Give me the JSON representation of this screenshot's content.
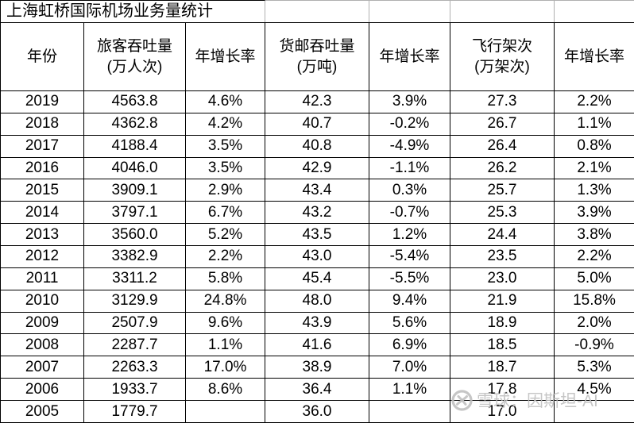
{
  "title": "上海虹桥国际机场业务量统计",
  "watermark": {
    "text": "雪球：因斯坦-AI",
    "logo": "xueqiu-circle-logo",
    "color": "#bebebe"
  },
  "colors": {
    "background": "#ffffff",
    "table_border": "#000000",
    "title_gridline": "#b0b0b0",
    "text": "#000000"
  },
  "table": {
    "columns": [
      {
        "line1": "年份",
        "line2": ""
      },
      {
        "line1": "旅客吞吐量",
        "line2": "(万人次)"
      },
      {
        "line1": "年增长率",
        "line2": ""
      },
      {
        "line1": "货邮吞吐量",
        "line2": "(万吨)"
      },
      {
        "line1": "年增长率",
        "line2": ""
      },
      {
        "line1": "飞行架次",
        "line2": "(万架次)"
      },
      {
        "line1": "年增长率",
        "line2": ""
      }
    ]
  },
  "chart_data": {
    "type": "table",
    "title": "上海虹桥国际机场业务量统计",
    "columns": [
      "年份",
      "旅客吞吐量(万人次)",
      "年增长率",
      "货邮吞吐量(万吨)",
      "年增长率",
      "飞行架次(万架次)",
      "年增长率"
    ],
    "rows": [
      [
        "2019",
        "4563.8",
        "4.6%",
        "42.3",
        "3.9%",
        "27.3",
        "2.2%"
      ],
      [
        "2018",
        "4362.8",
        "4.2%",
        "40.7",
        "-0.2%",
        "26.7",
        "1.1%"
      ],
      [
        "2017",
        "4188.4",
        "3.5%",
        "40.8",
        "-4.9%",
        "26.4",
        "0.8%"
      ],
      [
        "2016",
        "4046.0",
        "3.5%",
        "42.9",
        "-1.1%",
        "26.2",
        "2.1%"
      ],
      [
        "2015",
        "3909.1",
        "2.9%",
        "43.4",
        "0.3%",
        "25.7",
        "1.3%"
      ],
      [
        "2014",
        "3797.1",
        "6.7%",
        "43.2",
        "-0.7%",
        "25.3",
        "3.9%"
      ],
      [
        "2013",
        "3560.0",
        "5.2%",
        "43.5",
        "1.2%",
        "24.4",
        "3.8%"
      ],
      [
        "2012",
        "3382.9",
        "2.2%",
        "43.0",
        "-5.4%",
        "23.5",
        "2.2%"
      ],
      [
        "2011",
        "3311.2",
        "5.8%",
        "45.4",
        "-5.5%",
        "23.0",
        "5.0%"
      ],
      [
        "2010",
        "3129.9",
        "24.8%",
        "48.0",
        "9.4%",
        "21.9",
        "15.8%"
      ],
      [
        "2009",
        "2507.9",
        "9.6%",
        "43.9",
        "5.6%",
        "18.9",
        "2.0%"
      ],
      [
        "2008",
        "2287.7",
        "1.1%",
        "41.6",
        "6.9%",
        "18.5",
        "-0.9%"
      ],
      [
        "2007",
        "2263.3",
        "17.0%",
        "38.9",
        "7.0%",
        "18.7",
        "5.3%"
      ],
      [
        "2006",
        "1933.7",
        "8.6%",
        "36.4",
        "1.1%",
        "17.8",
        "4.5%"
      ],
      [
        "2005",
        "1779.7",
        "",
        "36.0",
        "",
        "17.0",
        ""
      ]
    ]
  }
}
